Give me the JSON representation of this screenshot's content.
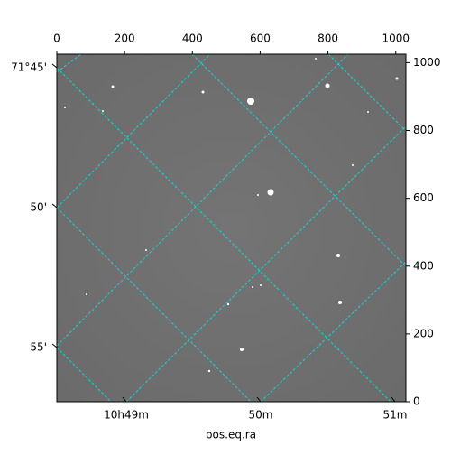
{
  "chart_data": {
    "type": "image",
    "xlabel": "pos.eq.ra",
    "xlim": [
      0,
      1030
    ],
    "ylim": [
      0,
      1025
    ],
    "xticks": [
      0,
      200,
      400,
      600,
      800,
      1000
    ],
    "yticks": [
      0,
      200,
      400,
      600,
      800,
      1000
    ],
    "ra_labels": [
      "10h49m",
      "50m",
      "51m"
    ],
    "dec_labels": [
      "71°45'",
      "50'",
      "55'"
    ],
    "grid_color": "#00e5e5"
  }
}
